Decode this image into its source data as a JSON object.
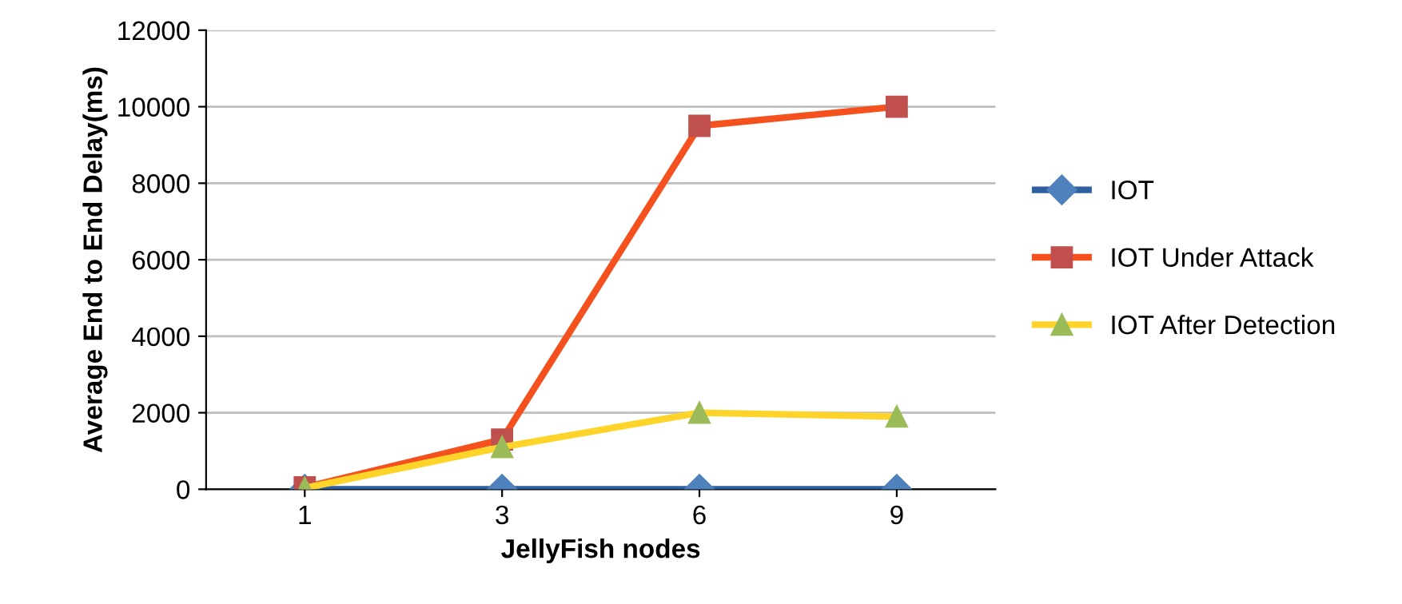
{
  "chart_data": {
    "type": "line",
    "xlabel": "JellyFish nodes",
    "ylabel": "Average End to End Delay(ms)",
    "categories": [
      "1",
      "3",
      "6",
      "9"
    ],
    "series": [
      {
        "name": "IOT",
        "color": "#2e5f9e",
        "marker": "diamond",
        "values": [
          0,
          0,
          0,
          0
        ]
      },
      {
        "name": "IOT Under Attack",
        "color": "#f4511e",
        "marker": "square",
        "values": [
          50,
          1300,
          9500,
          10000
        ]
      },
      {
        "name": "IOT After Detection",
        "color": "#ffd42a",
        "marker": "triangle",
        "values": [
          30,
          1100,
          2000,
          1900
        ]
      }
    ],
    "ylim": [
      0,
      12000
    ],
    "yticks": [
      0,
      2000,
      4000,
      6000,
      8000,
      10000,
      12000
    ],
    "grid": "y",
    "legend": "right",
    "line_style": "solid"
  }
}
